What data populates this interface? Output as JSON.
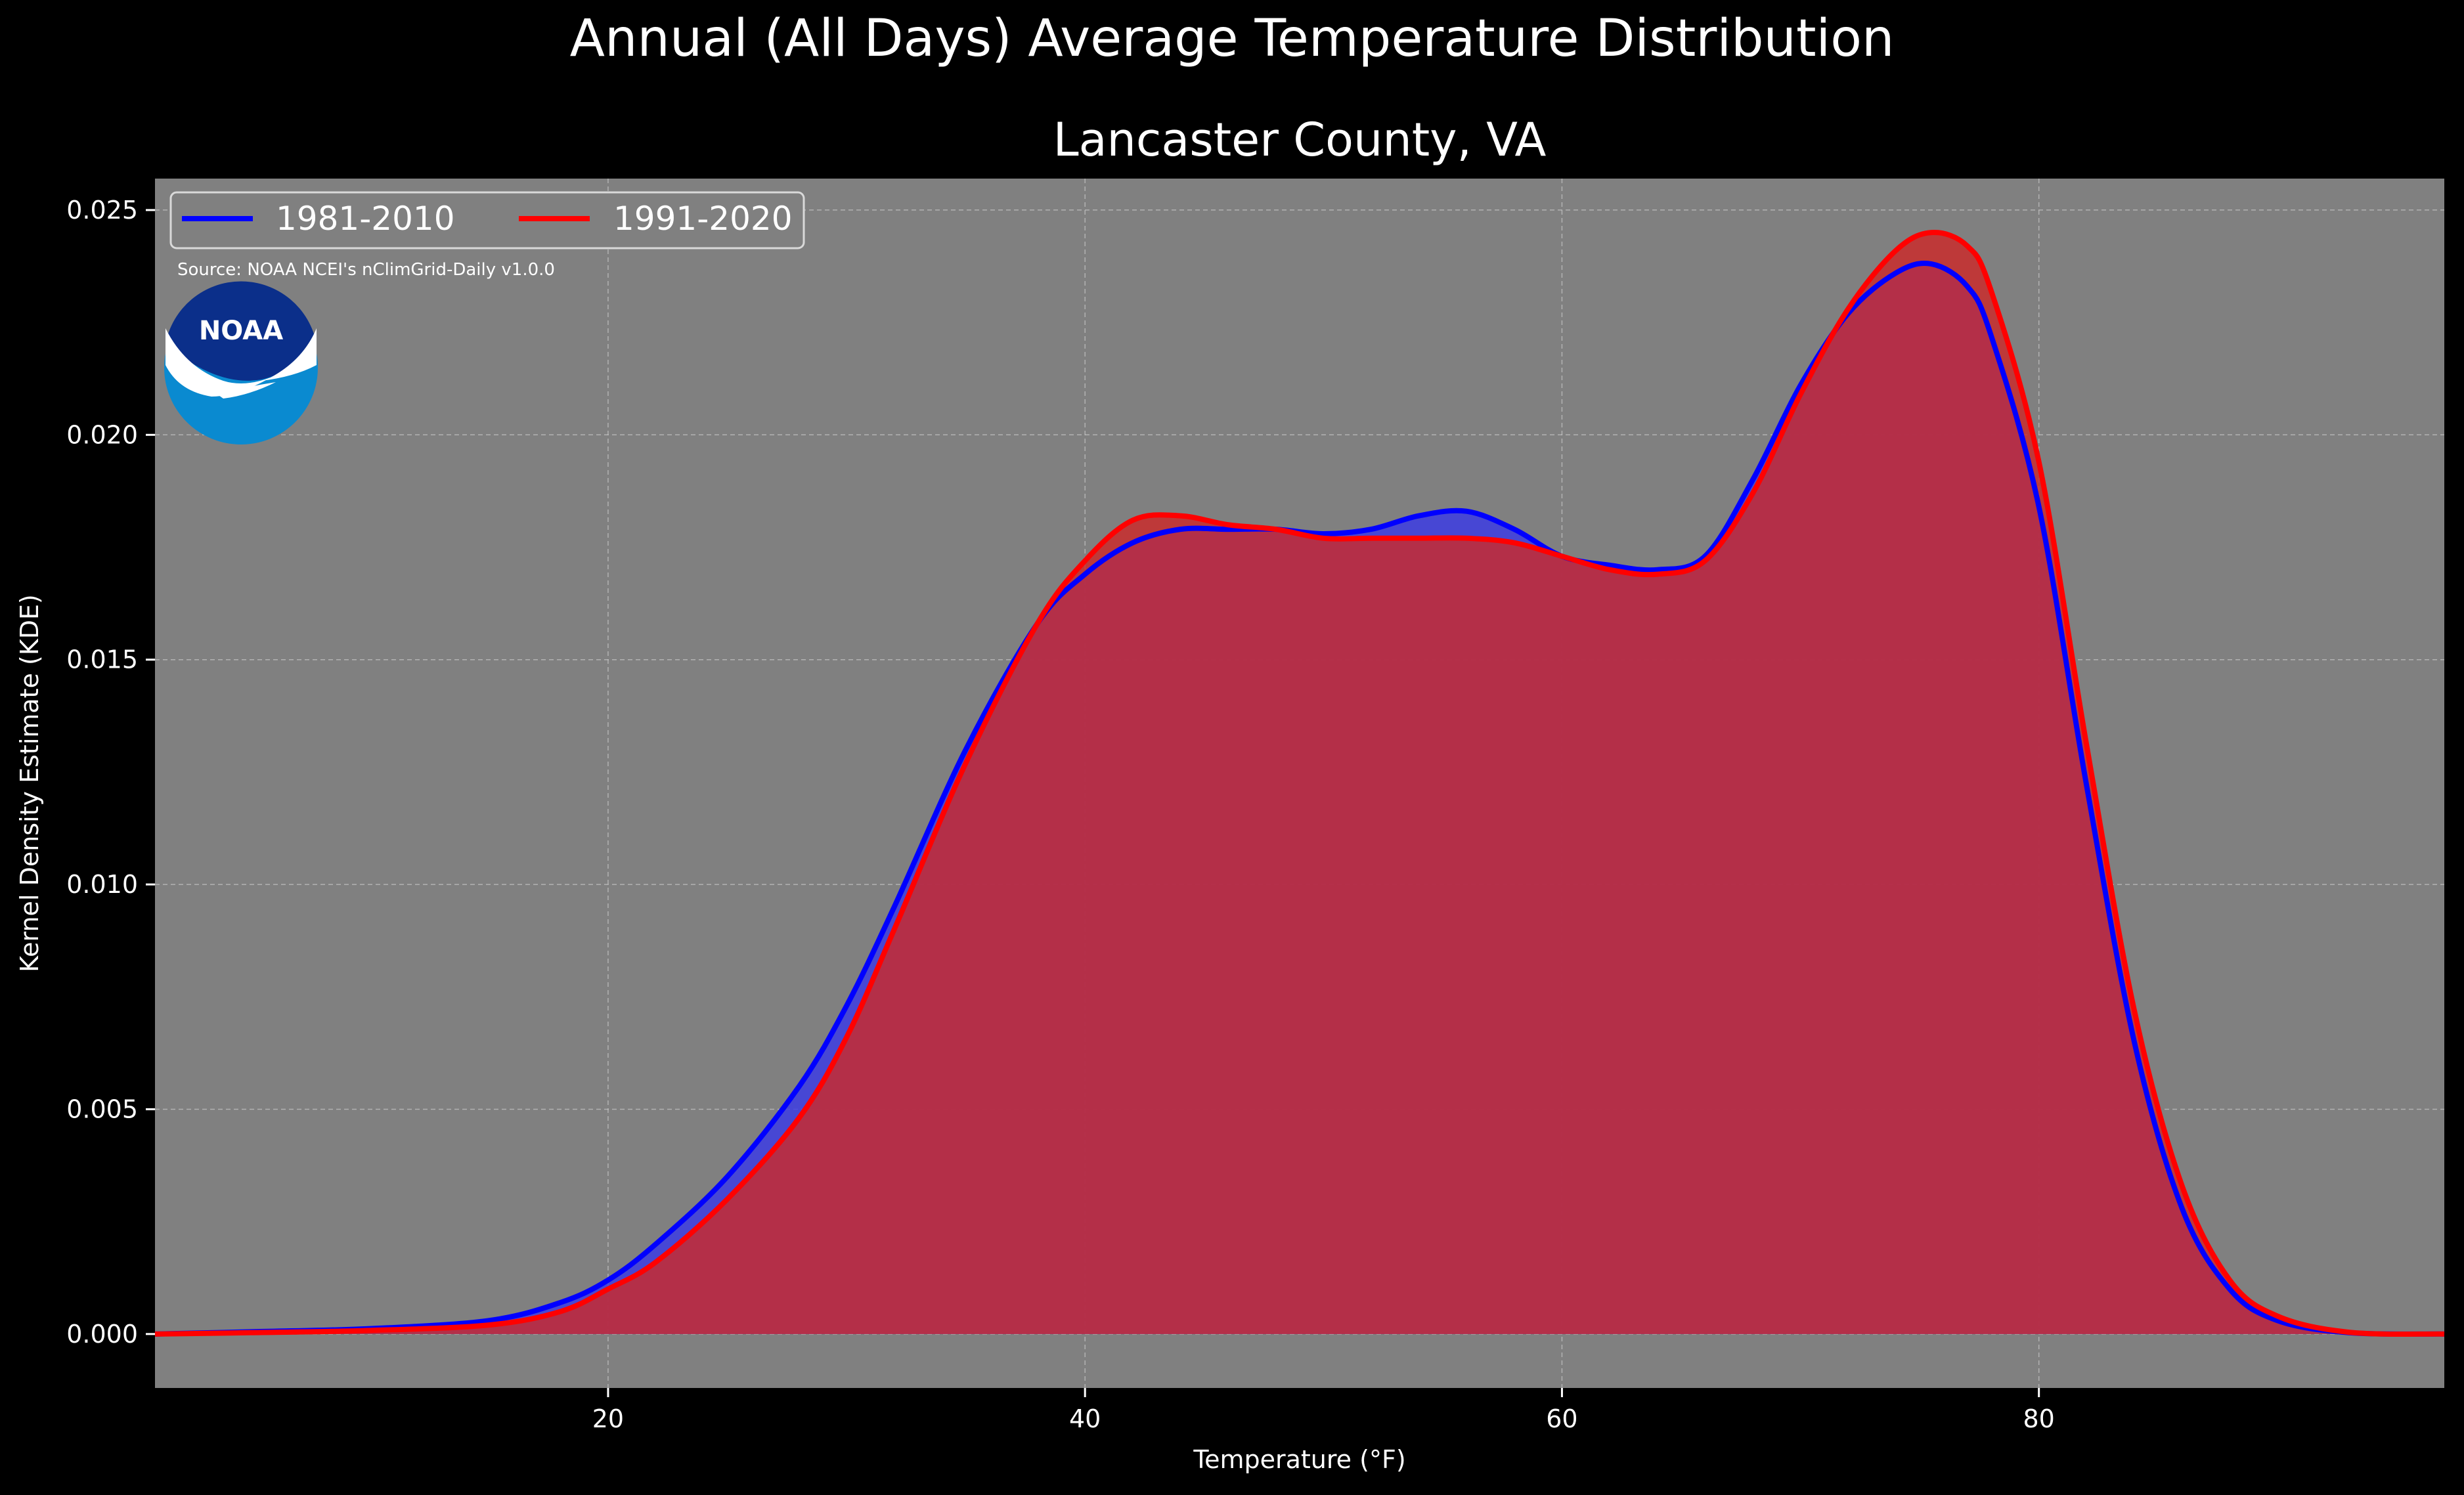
{
  "chart_data": {
    "type": "area",
    "title": "Annual (All Days) Average Temperature Distribution",
    "subtitle": "Lancaster County, VA",
    "xlabel": "Temperature (°F)",
    "ylabel": "Kernel Density Estimate (KDE)",
    "source": "Source: NOAA NCEI's nClimGrid-Daily v1.0.0",
    "logo_text": "NOAA",
    "xlim": [
      1,
      97
    ],
    "ylim": [
      -0.0012,
      0.0257
    ],
    "xticks": [
      20,
      40,
      60,
      80
    ],
    "xtick_labels": [
      "20",
      "40",
      "60",
      "80"
    ],
    "yticks": [
      0.0,
      0.005,
      0.01,
      0.015,
      0.02,
      0.025
    ],
    "ytick_labels": [
      "0.000",
      "0.005",
      "0.010",
      "0.015",
      "0.020",
      "0.025"
    ],
    "grid": true,
    "legend_position": "top-left",
    "background": "#808080",
    "x": [
      1,
      5,
      10,
      15,
      18,
      20,
      22,
      25,
      28,
      30,
      32,
      35,
      38,
      40,
      42,
      44,
      46,
      48,
      50,
      52,
      54,
      56,
      58,
      60,
      62,
      64,
      66,
      68,
      70,
      72,
      74,
      75.5,
      77,
      78,
      80,
      82,
      84,
      86,
      88,
      90,
      93,
      97
    ],
    "series": [
      {
        "name": "1981-2010",
        "color": "#0000ff",
        "fill": "#3a3ae6",
        "values": [
          0.0,
          5e-05,
          0.00012,
          0.0003,
          0.0007,
          0.0012,
          0.002,
          0.0035,
          0.0055,
          0.0073,
          0.0095,
          0.013,
          0.0158,
          0.0169,
          0.0176,
          0.0179,
          0.0179,
          0.0179,
          0.0178,
          0.0179,
          0.0182,
          0.0183,
          0.0179,
          0.0173,
          0.0171,
          0.017,
          0.0173,
          0.019,
          0.0211,
          0.0227,
          0.0236,
          0.0238,
          0.0233,
          0.0222,
          0.0184,
          0.0122,
          0.0065,
          0.0028,
          0.001,
          0.0003,
          3e-05,
          0.0
        ]
      },
      {
        "name": "1991-2020",
        "color": "#ff0000",
        "fill": "#cc2a2a",
        "values": [
          0.0,
          3e-05,
          8e-05,
          0.0002,
          0.0005,
          0.001,
          0.0016,
          0.003,
          0.0048,
          0.0066,
          0.009,
          0.0127,
          0.0158,
          0.0172,
          0.0181,
          0.0182,
          0.018,
          0.0179,
          0.0177,
          0.0177,
          0.0177,
          0.0177,
          0.0176,
          0.0173,
          0.017,
          0.0169,
          0.0172,
          0.0187,
          0.0209,
          0.0228,
          0.0241,
          0.0245,
          0.0242,
          0.0232,
          0.0194,
          0.0131,
          0.0072,
          0.0033,
          0.0012,
          0.0004,
          4e-05,
          0.0
        ]
      }
    ]
  }
}
